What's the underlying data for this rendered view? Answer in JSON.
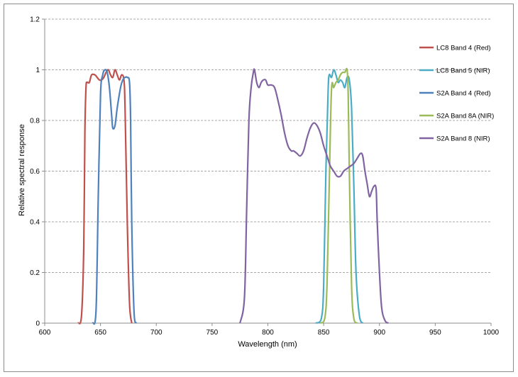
{
  "chart_data": {
    "type": "line",
    "xlabel": "Wavelength (nm)",
    "ylabel": "Relative spectral response",
    "xlim": [
      600,
      1000
    ],
    "ylim": [
      0,
      1.2
    ],
    "x_ticks": [
      "600",
      "650",
      "700",
      "750",
      "800",
      "850",
      "900",
      "950",
      "1000"
    ],
    "y_ticks": [
      "0",
      "0.2",
      "0.4",
      "0.6",
      "0.8",
      "1",
      "1.2"
    ],
    "grid": "horizontal dashed",
    "legend_position": "right",
    "series": [
      {
        "name": "LC8 Band 4 (Red)",
        "color": "#C0504D",
        "points": [
          [
            630,
            0
          ],
          [
            633,
            0.03
          ],
          [
            635,
            0.3
          ],
          [
            636,
            0.75
          ],
          [
            637,
            0.93
          ],
          [
            638,
            0.95
          ],
          [
            640,
            0.95
          ],
          [
            642,
            0.98
          ],
          [
            645,
            0.98
          ],
          [
            647,
            0.97
          ],
          [
            649,
            0.96
          ],
          [
            651,
            0.96
          ],
          [
            653,
            0.97
          ],
          [
            655,
            0.99
          ],
          [
            657,
            1.0
          ],
          [
            659,
            0.98
          ],
          [
            661,
            0.97
          ],
          [
            663,
            1.0
          ],
          [
            665,
            0.98
          ],
          [
            667,
            0.96
          ],
          [
            669,
            0.98
          ],
          [
            671,
            0.96
          ],
          [
            672,
            0.85
          ],
          [
            674,
            0.4
          ],
          [
            676,
            0.08
          ],
          [
            678,
            0.0
          ]
        ]
      },
      {
        "name": "LC8 Band 5 (NIR)",
        "color": "#4BACC6",
        "points": [
          [
            843,
            0
          ],
          [
            848,
            0.02
          ],
          [
            850,
            0.15
          ],
          [
            852,
            0.6
          ],
          [
            854,
            0.92
          ],
          [
            855,
            0.98
          ],
          [
            857,
            0.97
          ],
          [
            859,
            1.0
          ],
          [
            861,
            0.98
          ],
          [
            863,
            0.95
          ],
          [
            865,
            0.96
          ],
          [
            867,
            0.95
          ],
          [
            869,
            0.93
          ],
          [
            871,
            0.97
          ],
          [
            873,
            0.96
          ],
          [
            875,
            0.85
          ],
          [
            877,
            0.55
          ],
          [
            879,
            0.2
          ],
          [
            882,
            0.03
          ],
          [
            885,
            0.0
          ]
        ]
      },
      {
        "name": "S2A Band 4 (Red)",
        "color": "#4F81BD",
        "points": [
          [
            643,
            0
          ],
          [
            646,
            0.05
          ],
          [
            648,
            0.5
          ],
          [
            650,
            0.9
          ],
          [
            652,
            0.98
          ],
          [
            654,
            1.0
          ],
          [
            656,
            0.99
          ],
          [
            658,
            0.93
          ],
          [
            660,
            0.82
          ],
          [
            661,
            0.77
          ],
          [
            663,
            0.78
          ],
          [
            665,
            0.85
          ],
          [
            668,
            0.93
          ],
          [
            670,
            0.96
          ],
          [
            672,
            0.97
          ],
          [
            674,
            0.97
          ],
          [
            676,
            0.95
          ],
          [
            677,
            0.8
          ],
          [
            678,
            0.4
          ],
          [
            680,
            0.05
          ],
          [
            682,
            0.0
          ]
        ]
      },
      {
        "name": "S2A Band 8A (NIR)",
        "color": "#9BBB59",
        "points": [
          [
            847,
            0
          ],
          [
            851,
            0.02
          ],
          [
            853,
            0.15
          ],
          [
            855,
            0.55
          ],
          [
            857,
            0.92
          ],
          [
            859,
            0.93
          ],
          [
            861,
            0.95
          ],
          [
            863,
            0.96
          ],
          [
            865,
            0.98
          ],
          [
            867,
            0.99
          ],
          [
            869,
            0.99
          ],
          [
            871,
            1.0
          ],
          [
            872,
            0.9
          ],
          [
            873,
            0.6
          ],
          [
            875,
            0.15
          ],
          [
            877,
            0.02
          ],
          [
            880,
            0.0
          ]
        ]
      },
      {
        "name": "S2A Band 8 (NIR)",
        "color": "#8064A2",
        "points": [
          [
            775,
            0
          ],
          [
            779,
            0.1
          ],
          [
            781,
            0.45
          ],
          [
            783,
            0.8
          ],
          [
            785,
            0.93
          ],
          [
            787,
            0.99
          ],
          [
            788,
            1.0
          ],
          [
            790,
            0.95
          ],
          [
            792,
            0.93
          ],
          [
            794,
            0.95
          ],
          [
            796,
            0.96
          ],
          [
            798,
            0.96
          ],
          [
            800,
            0.94
          ],
          [
            803,
            0.94
          ],
          [
            806,
            0.93
          ],
          [
            809,
            0.88
          ],
          [
            812,
            0.82
          ],
          [
            815,
            0.75
          ],
          [
            818,
            0.7
          ],
          [
            821,
            0.68
          ],
          [
            823,
            0.68
          ],
          [
            826,
            0.67
          ],
          [
            829,
            0.66
          ],
          [
            832,
            0.68
          ],
          [
            835,
            0.73
          ],
          [
            838,
            0.77
          ],
          [
            841,
            0.79
          ],
          [
            844,
            0.78
          ],
          [
            847,
            0.75
          ],
          [
            850,
            0.7
          ],
          [
            853,
            0.66
          ],
          [
            856,
            0.62
          ],
          [
            859,
            0.6
          ],
          [
            862,
            0.58
          ],
          [
            865,
            0.58
          ],
          [
            868,
            0.6
          ],
          [
            871,
            0.61
          ],
          [
            874,
            0.62
          ],
          [
            877,
            0.63
          ],
          [
            880,
            0.65
          ],
          [
            883,
            0.67
          ],
          [
            885,
            0.66
          ],
          [
            887,
            0.6
          ],
          [
            889,
            0.55
          ],
          [
            891,
            0.5
          ],
          [
            893,
            0.52
          ],
          [
            895,
            0.54
          ],
          [
            897,
            0.53
          ],
          [
            898,
            0.4
          ],
          [
            900,
            0.2
          ],
          [
            902,
            0.06
          ],
          [
            905,
            0.01
          ],
          [
            908,
            0.0
          ]
        ]
      }
    ]
  }
}
